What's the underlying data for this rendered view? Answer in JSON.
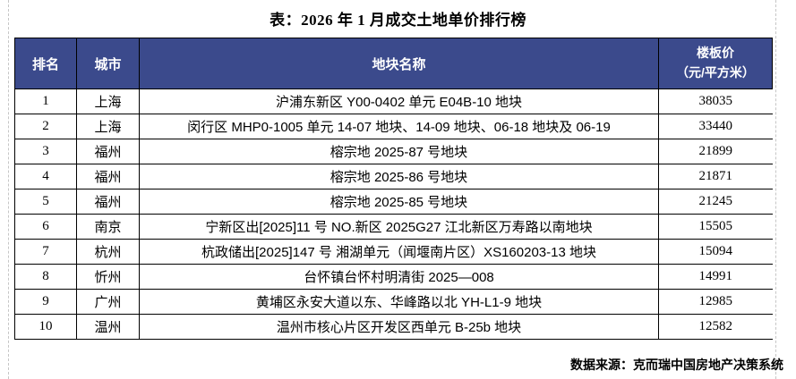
{
  "title": "表：2026 年 1 月成交土地单价排行榜",
  "table": {
    "header_rank": "排名",
    "header_city": "城市",
    "header_name": "地块名称",
    "header_price_line1": "楼板价",
    "header_price_line2": "（元/平方米）",
    "rows": [
      {
        "rank": "1",
        "city": "上海",
        "name": "沪浦东新区 Y00-0402 单元 E04B-10 地块",
        "price": "38035"
      },
      {
        "rank": "2",
        "city": "上海",
        "name": "闵行区 MHP0-1005 单元 14-07 地块、14-09 地块、06-18 地块及 06-19",
        "price": "33440"
      },
      {
        "rank": "3",
        "city": "福州",
        "name": "榕宗地 2025-87 号地块",
        "price": "21899"
      },
      {
        "rank": "4",
        "city": "福州",
        "name": "榕宗地 2025-86 号地块",
        "price": "21871"
      },
      {
        "rank": "5",
        "city": "福州",
        "name": "榕宗地 2025-85 号地块",
        "price": "21245"
      },
      {
        "rank": "6",
        "city": "南京",
        "name": "宁新区出[2025]11 号 NO.新区 2025G27 江北新区万寿路以南地块",
        "price": "15505"
      },
      {
        "rank": "7",
        "city": "杭州",
        "name": "杭政储出[2025]147 号 湘湖单元（闻堰南片区）XS160203-13 地块",
        "price": "15094"
      },
      {
        "rank": "8",
        "city": "忻州",
        "name": "台怀镇台怀村明清街 2025—008",
        "price": "14991"
      },
      {
        "rank": "9",
        "city": "广州",
        "name": "黄埔区永安大道以东、华峰路以北 YH-L1-9 地块",
        "price": "12985"
      },
      {
        "rank": "10",
        "city": "温州",
        "name": "温州市核心片区开发区西单元 B-25b 地块",
        "price": "12582"
      }
    ]
  },
  "footer": "数据来源：克而瑞中国房地产决策系统",
  "colors": {
    "header_bg": "#3b4a8c",
    "header_text": "#ffffff",
    "border": "#000000",
    "gridline_dash": "#c6c6c6"
  },
  "chart_data": {
    "type": "table",
    "title": "表：2026 年 1 月成交土地单价排行榜",
    "columns": [
      "排名",
      "城市",
      "地块名称",
      "楼板价（元/平方米）"
    ],
    "rows": [
      [
        1,
        "上海",
        "沪浦东新区 Y00-0402 单元 E04B-10 地块",
        38035
      ],
      [
        2,
        "上海",
        "闵行区 MHP0-1005 单元 14-07 地块、14-09 地块、06-18 地块及 06-19",
        33440
      ],
      [
        3,
        "福州",
        "榕宗地 2025-87 号地块",
        21899
      ],
      [
        4,
        "福州",
        "榕宗地 2025-86 号地块",
        21871
      ],
      [
        5,
        "福州",
        "榕宗地 2025-85 号地块",
        21245
      ],
      [
        6,
        "南京",
        "宁新区出[2025]11 号 NO.新区 2025G27 江北新区万寿路以南地块",
        15505
      ],
      [
        7,
        "杭州",
        "杭政储出[2025]147 号 湘湖单元（闻堰南片区）XS160203-13 地块",
        15094
      ],
      [
        8,
        "忻州",
        "台怀镇台怀村明清街 2025—008",
        14991
      ],
      [
        9,
        "广州",
        "黄埔区永安大道以东、华峰路以北 YH-L1-9 地块",
        12985
      ],
      [
        10,
        "温州",
        "温州市核心片区开发区西单元 B-25b 地块",
        12582
      ]
    ],
    "source": "数据来源：克而瑞中国房地产决策系统"
  }
}
